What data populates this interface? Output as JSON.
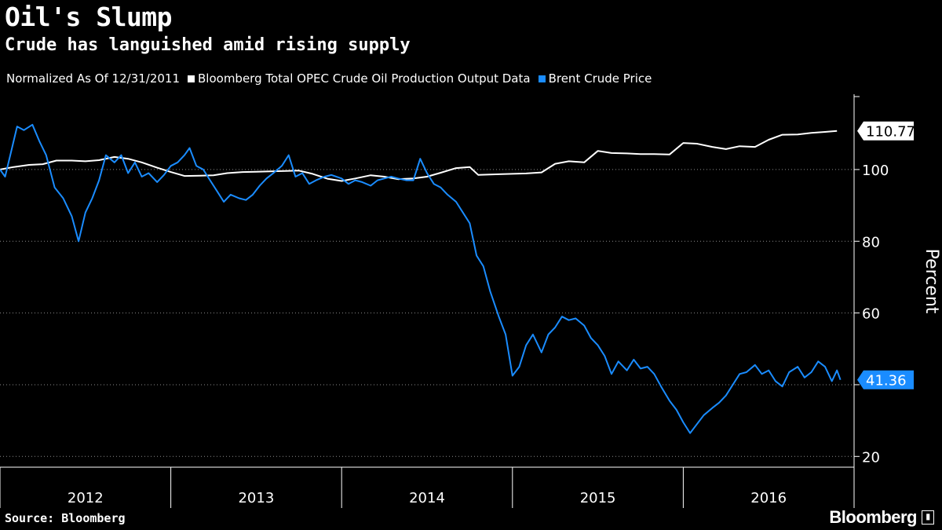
{
  "title": "Oil's Slump",
  "subtitle": "Crude has languished amid rising supply",
  "legend_note": "Normalized As Of 12/31/2011",
  "source": "Source: Bloomberg",
  "brand": "Bloomberg",
  "colors": {
    "background": "#000000",
    "opec": "#ffffff",
    "brent": "#1a8cff",
    "grid": "#ffffff"
  },
  "chart_data": {
    "type": "line",
    "title": "Oil's Slump",
    "subtitle": "Crude has languished amid rising supply",
    "note": "Normalized As Of 12/31/2011",
    "ylabel": "Percent",
    "ylim": [
      17,
      121
    ],
    "yticks": [
      20,
      40,
      60,
      80,
      100
    ],
    "y_tick_labels": [
      "20",
      "",
      "60",
      "80",
      "100"
    ],
    "xlim": [
      2012.0,
      2017.0
    ],
    "x_tick_labels": [
      "2012",
      "2013",
      "2014",
      "2015",
      "2016"
    ],
    "x_label_positions": [
      2012.5,
      2013.5,
      2014.5,
      2015.5,
      2016.5
    ],
    "grid": true,
    "legend_position": "top-left",
    "series": [
      {
        "name": "Bloomberg Total OPEC Crude Oil Production Output Data",
        "color": "#ffffff",
        "last_value": "110.77",
        "points": [
          [
            2012.0,
            100.0
          ],
          [
            2012.08,
            100.7
          ],
          [
            2012.17,
            101.3
          ],
          [
            2012.25,
            101.5
          ],
          [
            2012.33,
            102.5
          ],
          [
            2012.42,
            102.5
          ],
          [
            2012.5,
            102.3
          ],
          [
            2012.58,
            102.6
          ],
          [
            2012.67,
            103.5
          ],
          [
            2012.75,
            103.0
          ],
          [
            2012.83,
            102.0
          ],
          [
            2012.92,
            100.5
          ],
          [
            2013.0,
            99.3
          ],
          [
            2013.08,
            98.2
          ],
          [
            2013.17,
            98.3
          ],
          [
            2013.25,
            98.4
          ],
          [
            2013.33,
            99.0
          ],
          [
            2013.42,
            99.3
          ],
          [
            2013.5,
            99.4
          ],
          [
            2013.58,
            99.5
          ],
          [
            2013.67,
            99.6
          ],
          [
            2013.75,
            99.7
          ],
          [
            2013.83,
            98.8
          ],
          [
            2013.92,
            97.4
          ],
          [
            2014.0,
            96.8
          ],
          [
            2014.08,
            97.5
          ],
          [
            2014.17,
            98.4
          ],
          [
            2014.25,
            98.0
          ],
          [
            2014.33,
            97.3
          ],
          [
            2014.42,
            97.5
          ],
          [
            2014.5,
            98.0
          ],
          [
            2014.58,
            99.1
          ],
          [
            2014.67,
            100.4
          ],
          [
            2014.75,
            100.7
          ],
          [
            2014.8,
            98.5
          ],
          [
            2014.92,
            98.7
          ],
          [
            2015.0,
            98.8
          ],
          [
            2015.08,
            98.9
          ],
          [
            2015.17,
            99.2
          ],
          [
            2015.25,
            101.6
          ],
          [
            2015.33,
            102.3
          ],
          [
            2015.42,
            102.0
          ],
          [
            2015.5,
            105.2
          ],
          [
            2015.58,
            104.6
          ],
          [
            2015.67,
            104.5
          ],
          [
            2015.75,
            104.3
          ],
          [
            2015.83,
            104.3
          ],
          [
            2015.92,
            104.2
          ],
          [
            2016.0,
            107.4
          ],
          [
            2016.08,
            107.2
          ],
          [
            2016.17,
            106.3
          ],
          [
            2016.25,
            105.7
          ],
          [
            2016.33,
            106.5
          ],
          [
            2016.42,
            106.3
          ],
          [
            2016.5,
            108.3
          ],
          [
            2016.58,
            109.7
          ],
          [
            2016.67,
            109.8
          ],
          [
            2016.75,
            110.2
          ],
          [
            2016.83,
            110.5
          ],
          [
            2016.9,
            110.77
          ]
        ]
      },
      {
        "name": "Brent Crude Price",
        "color": "#1a8cff",
        "last_value": "41.36",
        "points": [
          [
            2012.0,
            100.0
          ],
          [
            2012.03,
            98.0
          ],
          [
            2012.06,
            104.0
          ],
          [
            2012.1,
            112.0
          ],
          [
            2012.14,
            111.0
          ],
          [
            2012.19,
            112.5
          ],
          [
            2012.23,
            108.0
          ],
          [
            2012.27,
            104.0
          ],
          [
            2012.32,
            95.0
          ],
          [
            2012.37,
            92.0
          ],
          [
            2012.42,
            87.0
          ],
          [
            2012.46,
            80.0
          ],
          [
            2012.5,
            88.0
          ],
          [
            2012.54,
            92.0
          ],
          [
            2012.58,
            97.0
          ],
          [
            2012.62,
            104.0
          ],
          [
            2012.67,
            102.0
          ],
          [
            2012.71,
            104.0
          ],
          [
            2012.75,
            99.0
          ],
          [
            2012.79,
            102.0
          ],
          [
            2012.83,
            98.0
          ],
          [
            2012.87,
            99.0
          ],
          [
            2012.92,
            96.5
          ],
          [
            2012.96,
            98.5
          ],
          [
            2013.0,
            101.0
          ],
          [
            2013.04,
            102.0
          ],
          [
            2013.08,
            104.0
          ],
          [
            2013.11,
            106.0
          ],
          [
            2013.15,
            101.0
          ],
          [
            2013.19,
            100.0
          ],
          [
            2013.23,
            97.0
          ],
          [
            2013.27,
            94.0
          ],
          [
            2013.31,
            91.0
          ],
          [
            2013.35,
            93.0
          ],
          [
            2013.4,
            92.0
          ],
          [
            2013.44,
            91.5
          ],
          [
            2013.48,
            93.0
          ],
          [
            2013.52,
            95.5
          ],
          [
            2013.56,
            97.5
          ],
          [
            2013.6,
            99.0
          ],
          [
            2013.65,
            101.0
          ],
          [
            2013.69,
            104.0
          ],
          [
            2013.73,
            98.0
          ],
          [
            2013.77,
            99.0
          ],
          [
            2013.81,
            96.0
          ],
          [
            2013.85,
            97.0
          ],
          [
            2013.9,
            98.0
          ],
          [
            2013.94,
            98.5
          ],
          [
            2014.0,
            97.5
          ],
          [
            2014.04,
            96.0
          ],
          [
            2014.08,
            97.0
          ],
          [
            2014.12,
            96.5
          ],
          [
            2014.17,
            95.5
          ],
          [
            2014.21,
            97.0
          ],
          [
            2014.25,
            97.5
          ],
          [
            2014.29,
            98.0
          ],
          [
            2014.33,
            97.5
          ],
          [
            2014.38,
            97.0
          ],
          [
            2014.42,
            97.0
          ],
          [
            2014.46,
            103.0
          ],
          [
            2014.5,
            99.0
          ],
          [
            2014.54,
            96.0
          ],
          [
            2014.58,
            95.0
          ],
          [
            2014.62,
            93.0
          ],
          [
            2014.67,
            91.0
          ],
          [
            2014.71,
            88.0
          ],
          [
            2014.75,
            85.0
          ],
          [
            2014.79,
            76.0
          ],
          [
            2014.83,
            73.0
          ],
          [
            2014.87,
            66.0
          ],
          [
            2014.92,
            59.0
          ],
          [
            2014.96,
            54.0
          ],
          [
            2015.0,
            42.5
          ],
          [
            2015.04,
            45.0
          ],
          [
            2015.08,
            51.0
          ],
          [
            2015.12,
            54.0
          ],
          [
            2015.17,
            49.0
          ],
          [
            2015.21,
            54.0
          ],
          [
            2015.25,
            56.0
          ],
          [
            2015.29,
            59.0
          ],
          [
            2015.33,
            58.0
          ],
          [
            2015.37,
            58.5
          ],
          [
            2015.42,
            56.5
          ],
          [
            2015.46,
            53.0
          ],
          [
            2015.5,
            51.0
          ],
          [
            2015.54,
            48.0
          ],
          [
            2015.58,
            43.0
          ],
          [
            2015.62,
            46.5
          ],
          [
            2015.67,
            44.0
          ],
          [
            2015.71,
            47.0
          ],
          [
            2015.75,
            44.5
          ],
          [
            2015.79,
            45.0
          ],
          [
            2015.83,
            43.0
          ],
          [
            2015.87,
            39.5
          ],
          [
            2015.92,
            35.5
          ],
          [
            2015.96,
            33.0
          ],
          [
            2016.0,
            29.5
          ],
          [
            2016.04,
            26.5
          ],
          [
            2016.08,
            29.0
          ],
          [
            2016.12,
            31.5
          ],
          [
            2016.17,
            33.5
          ],
          [
            2016.21,
            35.0
          ],
          [
            2016.25,
            37.0
          ],
          [
            2016.29,
            40.0
          ],
          [
            2016.33,
            43.0
          ],
          [
            2016.37,
            43.5
          ],
          [
            2016.42,
            45.5
          ],
          [
            2016.46,
            43.0
          ],
          [
            2016.5,
            44.0
          ],
          [
            2016.54,
            41.0
          ],
          [
            2016.58,
            39.5
          ],
          [
            2016.62,
            43.5
          ],
          [
            2016.67,
            45.0
          ],
          [
            2016.71,
            42.0
          ],
          [
            2016.75,
            43.5
          ],
          [
            2016.79,
            46.5
          ],
          [
            2016.83,
            45.0
          ],
          [
            2016.87,
            41.0
          ],
          [
            2016.9,
            44.0
          ],
          [
            2016.92,
            41.36
          ]
        ]
      }
    ]
  }
}
